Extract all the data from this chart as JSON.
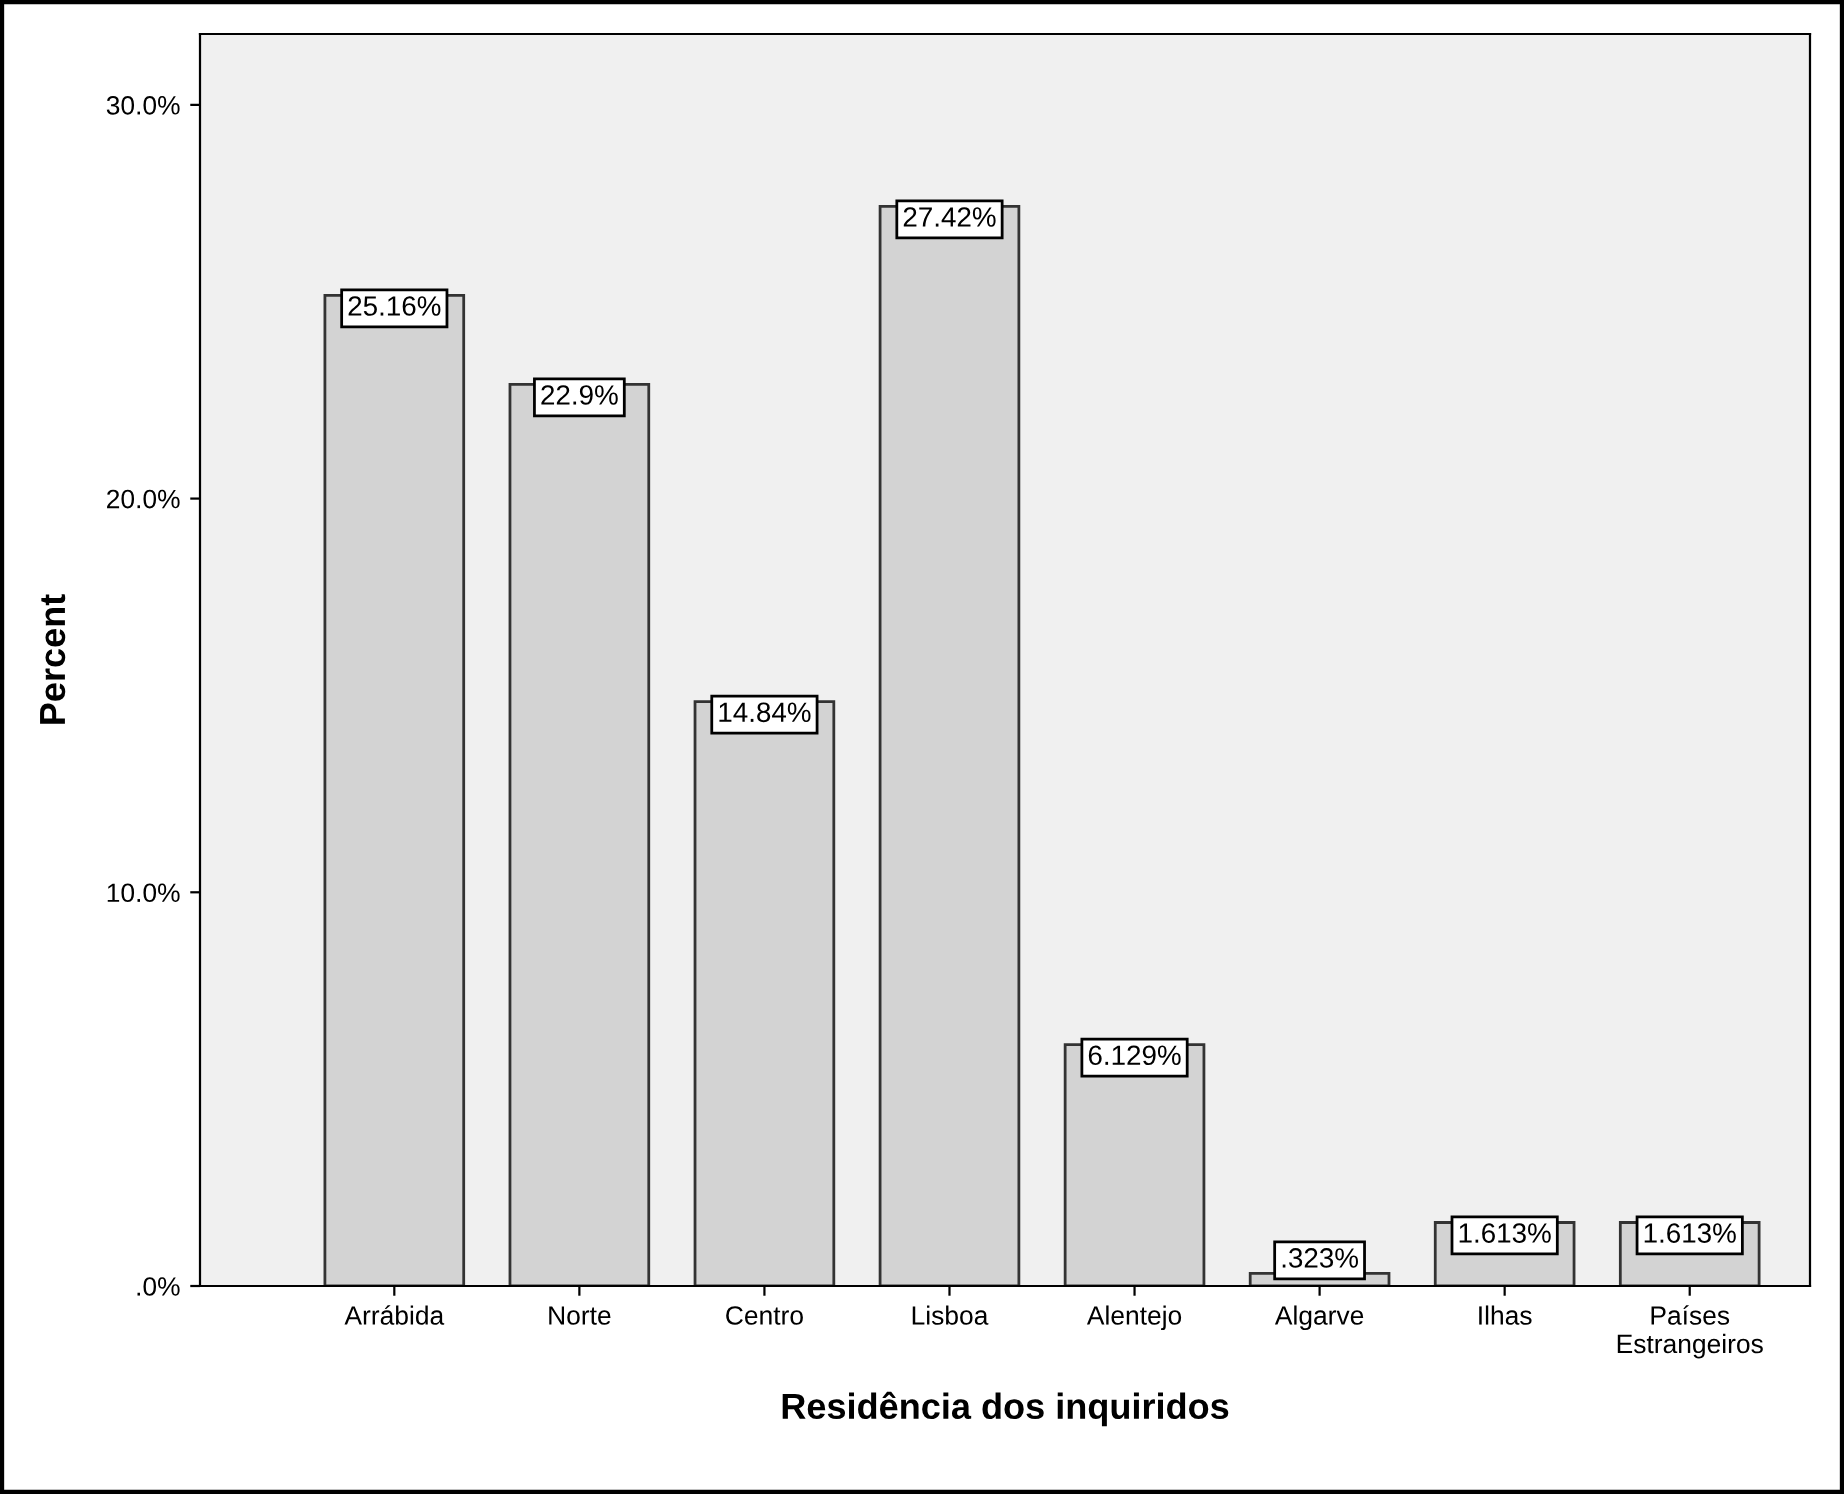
{
  "chart_data": {
    "type": "bar",
    "xlabel": "Residência dos inquiridos",
    "ylabel": "Percent",
    "categories": [
      "Arrábida",
      "Norte",
      "Centro",
      "Lisboa",
      "Alentejo",
      "Algarve",
      "Ilhas",
      "Países\nEstrangeiros"
    ],
    "values": [
      25.16,
      22.9,
      14.84,
      27.42,
      6.129,
      0.323,
      1.613,
      1.613
    ],
    "value_labels": [
      "25.16%",
      "22.9%",
      "14.84%",
      "27.42%",
      "6.129%",
      ".323%",
      "1.613%",
      "1.613%"
    ],
    "color": "#d3d3d3",
    "ylim": [
      0,
      31.8
    ],
    "yticks": [
      {
        "value": 0,
        "label": ".0%"
      },
      {
        "value": 10,
        "label": "10.0%"
      },
      {
        "value": 20,
        "label": "20.0%"
      },
      {
        "value": 30,
        "label": "30.0%"
      }
    ],
    "grid": false,
    "legend": false
  }
}
